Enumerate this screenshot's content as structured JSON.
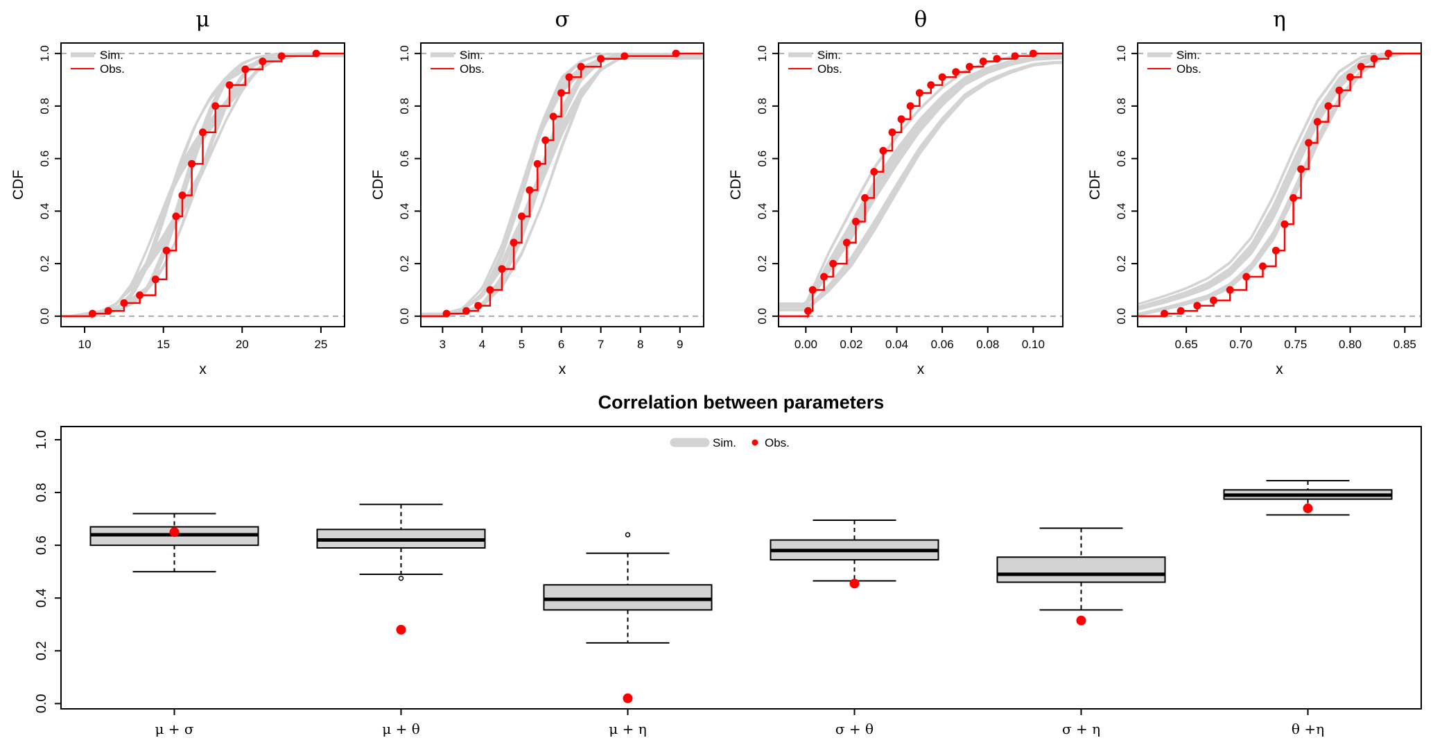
{
  "chart_data": [
    {
      "type": "line",
      "panel": "cdf",
      "title": "μ",
      "xlabel": "x",
      "ylabel": "CDF",
      "xlim": [
        8.5,
        26.5
      ],
      "ylim": [
        -0.04,
        1.04
      ],
      "x_ticks": [
        10,
        15,
        20,
        25
      ],
      "y_ticks": [
        "0.0",
        "0.2",
        "0.4",
        "0.6",
        "0.8",
        "1.0"
      ],
      "legend": {
        "position": "top-left",
        "sim_label": "Sim.",
        "obs_label": "Obs."
      },
      "colors": {
        "sim": "#d3d3d3",
        "obs": "#ff0000",
        "ref": "#aaaaaa"
      },
      "observed_cdf": {
        "x": [
          10.5,
          11.5,
          12.5,
          13.5,
          14.5,
          15.2,
          15.8,
          16.2,
          16.8,
          17.5,
          18.3,
          19.2,
          20.2,
          21.3,
          22.5,
          24.7
        ],
        "y": [
          0.01,
          0.02,
          0.05,
          0.08,
          0.14,
          0.25,
          0.38,
          0.46,
          0.58,
          0.7,
          0.8,
          0.88,
          0.94,
          0.97,
          0.99,
          1.0
        ]
      },
      "simulated_band": {
        "x": [
          9,
          11,
          12,
          13,
          14,
          15,
          16,
          17,
          18,
          19,
          20,
          21,
          22,
          23.5
        ],
        "lower": [
          0.0,
          0.0,
          0.02,
          0.04,
          0.08,
          0.17,
          0.3,
          0.45,
          0.6,
          0.74,
          0.85,
          0.93,
          0.97,
          0.99
        ],
        "upper": [
          0.0,
          0.02,
          0.05,
          0.13,
          0.27,
          0.43,
          0.6,
          0.74,
          0.85,
          0.93,
          0.97,
          0.99,
          1.0,
          1.0
        ]
      }
    },
    {
      "type": "line",
      "panel": "cdf",
      "title": "σ",
      "xlabel": "x",
      "ylabel": "CDF",
      "xlim": [
        2.45,
        9.6
      ],
      "ylim": [
        -0.04,
        1.04
      ],
      "x_ticks": [
        3,
        4,
        5,
        6,
        7,
        8,
        9
      ],
      "y_ticks": [
        "0.0",
        "0.2",
        "0.4",
        "0.6",
        "0.8",
        "1.0"
      ],
      "legend": {
        "position": "top-left",
        "sim_label": "Sim.",
        "obs_label": "Obs."
      },
      "colors": {
        "sim": "#d3d3d3",
        "obs": "#ff0000",
        "ref": "#aaaaaa"
      },
      "observed_cdf": {
        "x": [
          3.1,
          3.6,
          3.9,
          4.2,
          4.5,
          4.8,
          5.0,
          5.2,
          5.4,
          5.6,
          5.8,
          6.0,
          6.2,
          6.5,
          7.0,
          7.6,
          8.9
        ],
        "y": [
          0.01,
          0.02,
          0.04,
          0.1,
          0.18,
          0.28,
          0.38,
          0.48,
          0.58,
          0.67,
          0.76,
          0.85,
          0.91,
          0.95,
          0.98,
          0.99,
          1.0
        ]
      },
      "simulated_band": {
        "x": [
          3.0,
          3.5,
          4.0,
          4.5,
          5.0,
          5.5,
          6.0,
          6.5,
          7.0,
          7.5
        ],
        "lower": [
          0.0,
          0.01,
          0.03,
          0.1,
          0.22,
          0.4,
          0.62,
          0.82,
          0.93,
          0.98
        ],
        "upper": [
          0.01,
          0.03,
          0.11,
          0.28,
          0.52,
          0.77,
          0.93,
          0.98,
          1.0,
          1.0
        ]
      }
    },
    {
      "type": "line",
      "panel": "cdf",
      "title": "θ",
      "xlabel": "x",
      "ylabel": "CDF",
      "xlim": [
        -0.012,
        0.113
      ],
      "ylim": [
        -0.04,
        1.04
      ],
      "x_ticks": [
        "0.00",
        "0.02",
        "0.04",
        "0.06",
        "0.08",
        "0.10"
      ],
      "y_ticks": [
        "0.0",
        "0.2",
        "0.4",
        "0.6",
        "0.8",
        "1.0"
      ],
      "legend": {
        "position": "top-left",
        "sim_label": "Sim.",
        "obs_label": "Obs."
      },
      "colors": {
        "sim": "#d3d3d3",
        "obs": "#ff0000",
        "ref": "#aaaaaa"
      },
      "observed_cdf": {
        "x": [
          0.001,
          0.003,
          0.008,
          0.012,
          0.018,
          0.022,
          0.026,
          0.03,
          0.034,
          0.038,
          0.042,
          0.046,
          0.05,
          0.055,
          0.06,
          0.066,
          0.072,
          0.078,
          0.084,
          0.092,
          0.1
        ],
        "y": [
          0.02,
          0.1,
          0.15,
          0.2,
          0.28,
          0.36,
          0.45,
          0.55,
          0.63,
          0.7,
          0.75,
          0.8,
          0.85,
          0.88,
          0.91,
          0.93,
          0.95,
          0.97,
          0.98,
          0.99,
          1.0
        ]
      },
      "simulated_band": {
        "x": [
          0.0,
          0.01,
          0.02,
          0.03,
          0.04,
          0.05,
          0.06,
          0.07,
          0.08,
          0.09,
          0.1,
          0.11
        ],
        "lower": [
          0.02,
          0.08,
          0.17,
          0.3,
          0.45,
          0.6,
          0.72,
          0.82,
          0.88,
          0.92,
          0.95,
          0.96
        ],
        "upper": [
          0.05,
          0.25,
          0.42,
          0.58,
          0.7,
          0.8,
          0.88,
          0.94,
          0.97,
          0.99,
          1.0,
          1.0
        ]
      }
    },
    {
      "type": "line",
      "panel": "cdf",
      "title": "η",
      "xlabel": "x",
      "ylabel": "CDF",
      "xlim": [
        0.6055,
        0.865
      ],
      "ylim": [
        -0.04,
        1.04
      ],
      "x_ticks": [
        "0.65",
        "0.70",
        "0.75",
        "0.80",
        "0.85"
      ],
      "y_ticks": [
        "0.0",
        "0.2",
        "0.4",
        "0.6",
        "0.8",
        "1.0"
      ],
      "legend": {
        "position": "top-left",
        "sim_label": "Sim.",
        "obs_label": "Obs."
      },
      "colors": {
        "sim": "#d3d3d3",
        "obs": "#ff0000",
        "ref": "#aaaaaa"
      },
      "observed_cdf": {
        "x": [
          0.63,
          0.645,
          0.66,
          0.675,
          0.69,
          0.705,
          0.72,
          0.732,
          0.74,
          0.748,
          0.755,
          0.762,
          0.77,
          0.78,
          0.79,
          0.8,
          0.81,
          0.822,
          0.835
        ],
        "y": [
          0.01,
          0.02,
          0.04,
          0.06,
          0.1,
          0.15,
          0.19,
          0.25,
          0.35,
          0.45,
          0.56,
          0.66,
          0.74,
          0.8,
          0.86,
          0.91,
          0.95,
          0.98,
          1.0
        ]
      },
      "simulated_band": {
        "x": [
          0.607,
          0.63,
          0.65,
          0.67,
          0.69,
          0.71,
          0.73,
          0.75,
          0.77,
          0.79,
          0.81,
          0.83,
          0.85
        ],
        "lower": [
          0.0,
          0.02,
          0.04,
          0.06,
          0.1,
          0.17,
          0.28,
          0.45,
          0.64,
          0.8,
          0.92,
          0.98,
          1.0
        ],
        "upper": [
          0.05,
          0.08,
          0.11,
          0.15,
          0.21,
          0.31,
          0.47,
          0.66,
          0.83,
          0.94,
          0.99,
          1.0,
          1.0
        ]
      }
    },
    {
      "type": "boxplot",
      "panel": "correlation",
      "title": "Correlation between parameters",
      "xlabel": "",
      "ylabel": "",
      "ylim": [
        -0.02,
        1.05
      ],
      "y_ticks": [
        "0.0",
        "0.2",
        "0.4",
        "0.6",
        "0.8",
        "1.0"
      ],
      "legend": {
        "position": "top-center",
        "sim_label": "Sim.",
        "obs_label": "Obs."
      },
      "colors": {
        "box_fill": "#d3d3d3",
        "obs": "#ff0000"
      },
      "categories": [
        "μ + σ",
        "μ + θ",
        "μ + η",
        "σ + θ",
        "σ + η",
        "θ +η"
      ],
      "boxes": [
        {
          "whisker_low": 0.5,
          "q1": 0.6,
          "median": 0.64,
          "q3": 0.67,
          "whisker_high": 0.72,
          "outliers": [],
          "observed": 0.65
        },
        {
          "whisker_low": 0.49,
          "q1": 0.59,
          "median": 0.62,
          "q3": 0.66,
          "whisker_high": 0.755,
          "outliers": [
            0.475
          ],
          "observed": 0.28
        },
        {
          "whisker_low": 0.23,
          "q1": 0.355,
          "median": 0.395,
          "q3": 0.45,
          "whisker_high": 0.57,
          "outliers": [
            0.64
          ],
          "observed": 0.02
        },
        {
          "whisker_low": 0.465,
          "q1": 0.545,
          "median": 0.58,
          "q3": 0.62,
          "whisker_high": 0.695,
          "outliers": [],
          "observed": 0.455
        },
        {
          "whisker_low": 0.355,
          "q1": 0.46,
          "median": 0.49,
          "q3": 0.555,
          "whisker_high": 0.665,
          "outliers": [],
          "observed": 0.315
        },
        {
          "whisker_low": 0.715,
          "q1": 0.775,
          "median": 0.79,
          "q3": 0.81,
          "whisker_high": 0.845,
          "outliers": [],
          "observed": 0.74
        }
      ]
    }
  ]
}
